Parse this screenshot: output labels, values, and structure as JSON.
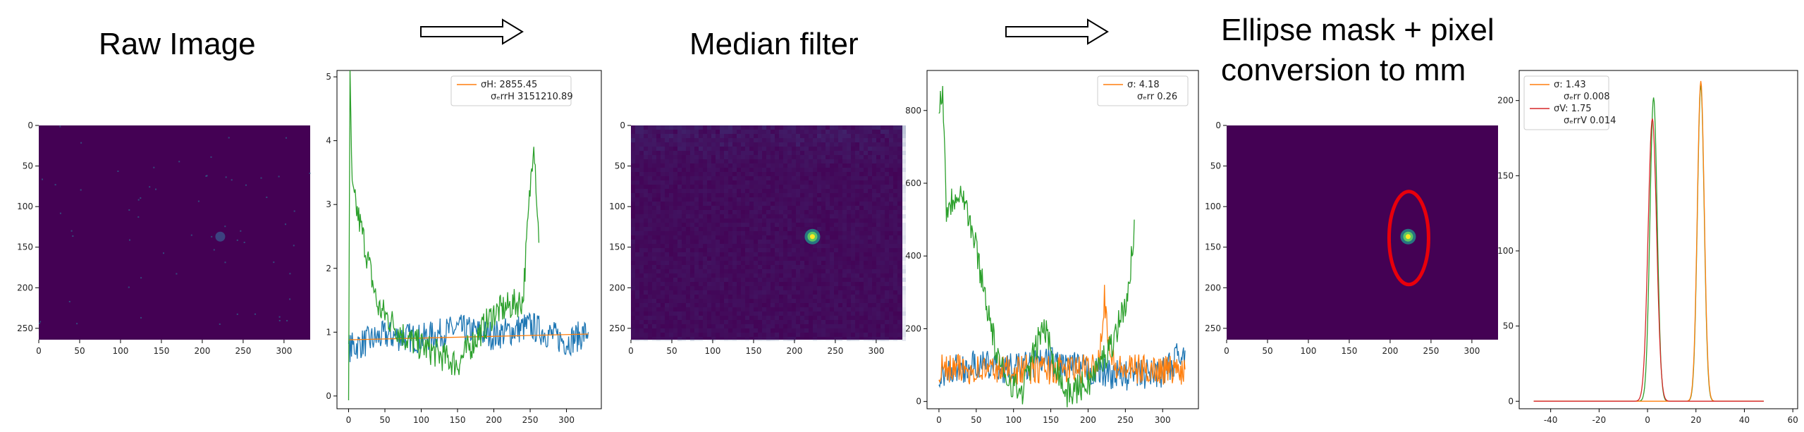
{
  "titles": {
    "raw": "Raw Image",
    "median": "Median filter",
    "ellipse_line1": "Ellipse mask + pixel",
    "ellipse_line2": "conversion to mm"
  },
  "colors": {
    "image_bg": "#440154",
    "blue": "#1f77b4",
    "orange": "#ff7f0e",
    "green": "#2ca02c",
    "red": "#d62728",
    "ellipse": "#e8000b"
  },
  "chart_data": [
    {
      "type": "heatmap",
      "x_ticks": [
        "0",
        "50",
        "100",
        "150",
        "200",
        "250",
        "300"
      ],
      "y_ticks": [
        "0",
        "50",
        "100",
        "150",
        "200",
        "250"
      ],
      "xlim": [
        0,
        332
      ],
      "ylim": [
        0,
        264
      ],
      "spot": {
        "x": 222,
        "y": 137,
        "intensity": "faint"
      }
    },
    {
      "type": "line",
      "x_ticks": [
        "0",
        "50",
        "100",
        "150",
        "200",
        "250",
        "300"
      ],
      "y_ticks": [
        "0",
        "1",
        "2",
        "3",
        "4",
        "5"
      ],
      "xlim": [
        -16,
        348
      ],
      "ylim": [
        -0.2,
        5.1
      ],
      "legend": [
        {
          "label": "σH: 2855.45",
          "color": "#ff7f0e"
        },
        {
          "label": "σₑrrH 3151210.89",
          "color": ""
        }
      ],
      "series": [
        {
          "color": "#1f77b4",
          "description_points": [
            [
              0,
              0.75
            ],
            [
              50,
              0.95
            ],
            [
              100,
              0.9
            ],
            [
              150,
              1.05
            ],
            [
              200,
              0.95
            ],
            [
              250,
              1.1
            ],
            [
              300,
              0.85
            ],
            [
              330,
              1.0
            ]
          ]
        },
        {
          "color": "#ff7f0e",
          "values_linear": [
            [
              0,
              0.88
            ],
            [
              330,
              0.97
            ]
          ]
        },
        {
          "color": "#2ca02c",
          "description_points": [
            [
              0,
              0.05
            ],
            [
              2,
              4.95
            ],
            [
              5,
              3.2
            ],
            [
              20,
              2.5
            ],
            [
              40,
              1.4
            ],
            [
              80,
              0.9
            ],
            [
              150,
              0.5
            ],
            [
              200,
              1.3
            ],
            [
              240,
              1.5
            ],
            [
              255,
              4.1
            ],
            [
              262,
              2.4
            ]
          ]
        }
      ]
    },
    {
      "type": "heatmap",
      "x_ticks": [
        "0",
        "50",
        "100",
        "150",
        "200",
        "250",
        "300"
      ],
      "y_ticks": [
        "0",
        "50",
        "100",
        "150",
        "200",
        "250"
      ],
      "xlim": [
        0,
        332
      ],
      "ylim": [
        0,
        264
      ],
      "spot": {
        "x": 222,
        "y": 137,
        "intensity": "bright"
      }
    },
    {
      "type": "line",
      "x_ticks": [
        "0",
        "50",
        "100",
        "150",
        "200",
        "250",
        "300"
      ],
      "y_ticks": [
        "0",
        "200",
        "400",
        "600",
        "800"
      ],
      "xlim": [
        -16,
        348
      ],
      "ylim": [
        -20,
        910
      ],
      "legend": [
        {
          "label": "σ: 4.18",
          "color": "#ff7f0e"
        },
        {
          "label": "σₑrr 0.26",
          "color": ""
        }
      ],
      "series": [
        {
          "color": "#1f77b4",
          "description_points": [
            [
              0,
              80
            ],
            [
              50,
              100
            ],
            [
              100,
              90
            ],
            [
              150,
              110
            ],
            [
              200,
              85
            ],
            [
              250,
              70
            ],
            [
              300,
              80
            ],
            [
              330,
              140
            ]
          ]
        },
        {
          "color": "#ff7f0e",
          "description_points": [
            [
              0,
              88
            ],
            [
              200,
              88
            ],
            [
              215,
              120
            ],
            [
              222,
              290
            ],
            [
              230,
              120
            ],
            [
              240,
              88
            ],
            [
              330,
              88
            ]
          ]
        },
        {
          "color": "#2ca02c",
          "description_points": [
            [
              0,
              800
            ],
            [
              5,
              870
            ],
            [
              10,
              530
            ],
            [
              30,
              590
            ],
            [
              50,
              420
            ],
            [
              80,
              100
            ],
            [
              110,
              20
            ],
            [
              140,
              210
            ],
            [
              170,
              20
            ],
            [
              200,
              50
            ],
            [
              230,
              150
            ],
            [
              255,
              300
            ],
            [
              262,
              500
            ]
          ]
        }
      ]
    },
    {
      "type": "heatmap",
      "x_ticks": [
        "0",
        "50",
        "100",
        "150",
        "200",
        "250",
        "300"
      ],
      "y_ticks": [
        "0",
        "50",
        "100",
        "150",
        "200",
        "250"
      ],
      "xlim": [
        0,
        332
      ],
      "ylim": [
        0,
        264
      ],
      "spot": {
        "x": 222,
        "y": 137,
        "intensity": "bright"
      },
      "ellipse_mask": true
    },
    {
      "type": "line",
      "x_ticks": [
        "-40",
        "-20",
        "0",
        "20",
        "40",
        "60"
      ],
      "y_ticks": [
        "0",
        "50",
        "100",
        "150",
        "200"
      ],
      "xlim": [
        -53,
        62
      ],
      "ylim": [
        -5,
        220
      ],
      "legend": [
        {
          "label": "σ: 1.43",
          "color": "#ff7f0e"
        },
        {
          "label": "σₑrr 0.008",
          "color": ""
        },
        {
          "label": "σV: 1.75",
          "color": "#d62728"
        },
        {
          "label": "σₑrrV 0.014",
          "color": ""
        }
      ],
      "series": [
        {
          "color": "#2ca02c",
          "peaks": [
            {
              "center": 2.5,
              "amplitude": 202,
              "width": 1.5
            },
            {
              "center": 22,
              "amplitude": 210,
              "width": 1.4
            }
          ],
          "range": [
            -47,
            48
          ]
        },
        {
          "color": "#ff7f0e",
          "peaks": [
            {
              "center": 22,
              "amplitude": 213,
              "width": 1.43
            }
          ],
          "range": [
            -47,
            48
          ]
        },
        {
          "color": "#d62728",
          "peaks": [
            {
              "center": 2,
              "amplitude": 188,
              "width": 1.75
            }
          ],
          "range": [
            -47,
            48
          ]
        }
      ]
    }
  ]
}
